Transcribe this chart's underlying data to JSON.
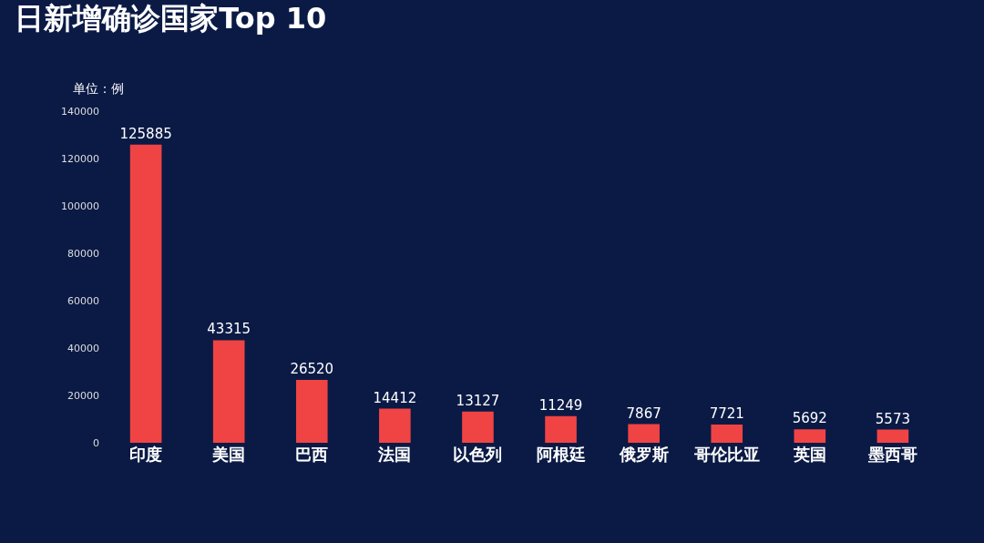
{
  "chart_data": {
    "type": "bar",
    "title": "日新增确诊国家Top 10",
    "ylabel": "单位：例",
    "categories": [
      "印度",
      "美国",
      "巴西",
      "法国",
      "以色列",
      "阿根廷",
      "俄罗斯",
      "哥伦比亚",
      "英国",
      "墨西哥"
    ],
    "values": [
      125885,
      43315,
      26520,
      14412,
      13127,
      11249,
      7867,
      7721,
      5692,
      5573
    ],
    "color": "#f04444",
    "ylim": [
      0,
      140000
    ],
    "yticks": [
      0,
      20000,
      40000,
      60000,
      80000,
      100000,
      120000,
      140000
    ],
    "grid": false,
    "data_labels": true
  }
}
